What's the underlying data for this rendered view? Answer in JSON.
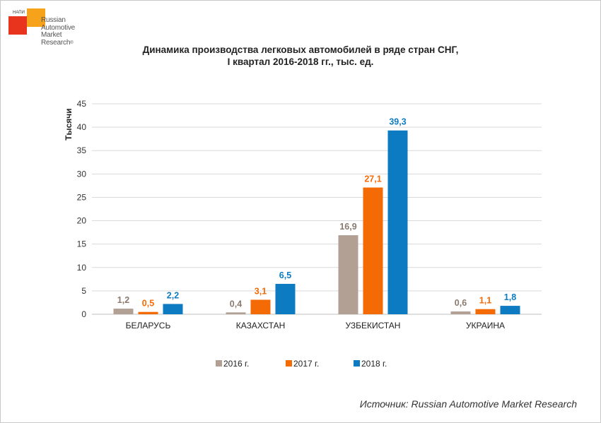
{
  "logo": {
    "tag": "НАПИ",
    "line1": "Russian",
    "line2": "Automotive",
    "line3": "Market",
    "line4": "Research",
    "reg": "®"
  },
  "header": {
    "title_line1": "Динамика производства легковых автомобилей в ряде стран СНГ,",
    "title_line2": "I квартал 2016-2018 гг., тыс. ед."
  },
  "source": "Источник: Russian Automotive Market Research",
  "chart_data": {
    "type": "bar",
    "title": "Динамика производства легковых автомобилей в ряде стран СНГ, I квартал 2016-2018 гг., тыс. ед.",
    "xlabel": "",
    "ylabel": "Тысячи",
    "ylim": [
      0,
      45
    ],
    "yticks": [
      0,
      5,
      10,
      15,
      20,
      25,
      30,
      35,
      40,
      45
    ],
    "grid": true,
    "legend_position": "bottom",
    "categories": [
      "БЕЛАРУСЬ",
      "КАЗАХСТАН",
      "УЗБЕКИСТАН",
      "УКРАИНА"
    ],
    "series": [
      {
        "name": "2016 г.",
        "color": "#b2a095",
        "values": [
          1.2,
          0.4,
          16.9,
          0.6
        ],
        "labels": [
          "1,2",
          "0,4",
          "16,9",
          "0,6"
        ]
      },
      {
        "name": "2017 г.",
        "color": "#f46a05",
        "values": [
          0.5,
          3.1,
          27.1,
          1.1
        ],
        "labels": [
          "0,5",
          "3,1",
          "27,1",
          "1,1"
        ]
      },
      {
        "name": "2018 г.",
        "color": "#0c7bc2",
        "values": [
          2.2,
          6.5,
          39.3,
          1.8
        ],
        "labels": [
          "2,2",
          "6,5",
          "39,3",
          "1,8"
        ]
      }
    ]
  }
}
